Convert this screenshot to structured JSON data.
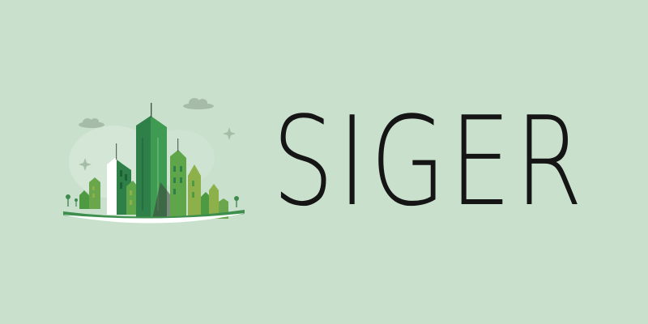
{
  "brand": {
    "name": "SIGER",
    "emblem_icon": "green-city-skyline-icon"
  },
  "colors": {
    "background": "#c9e1cc",
    "text": "#151515",
    "green_dark": "#2f8048",
    "green_mid": "#4e9a43",
    "green_light": "#8eb04a",
    "white": "#ffffff"
  }
}
